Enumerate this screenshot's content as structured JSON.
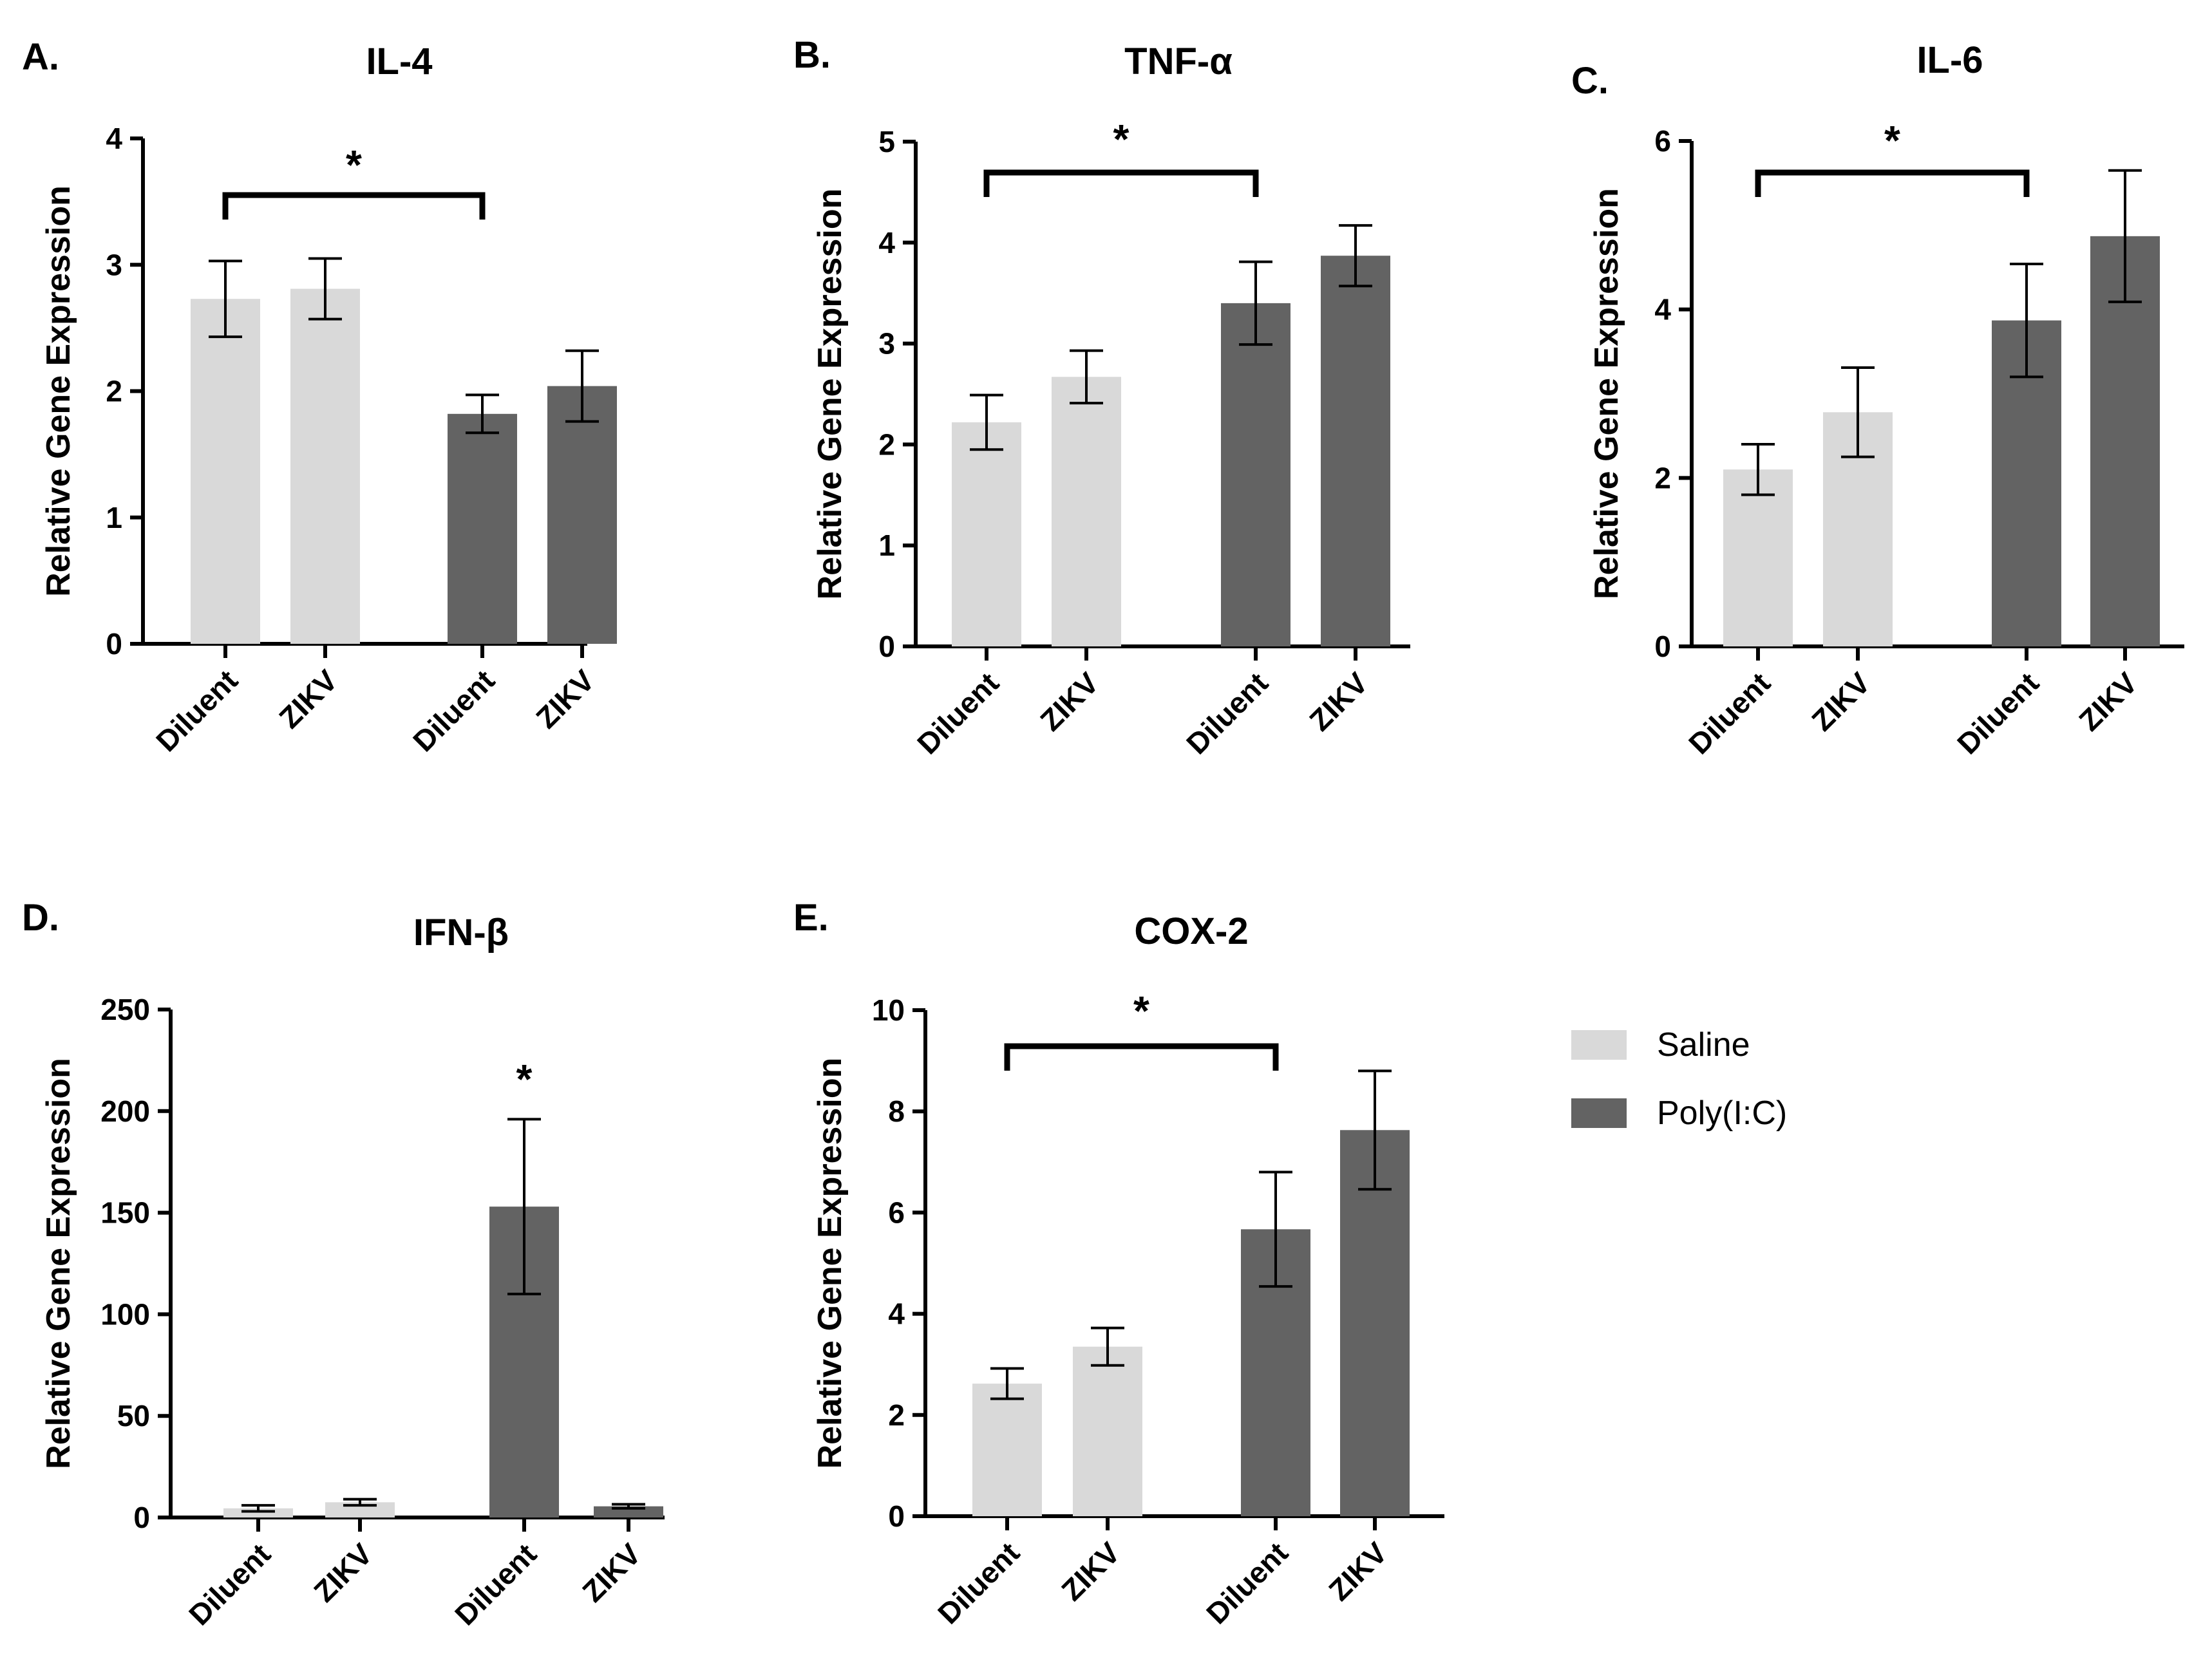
{
  "legend": {
    "entries": [
      {
        "label": "Saline",
        "color": "#d9d9d9"
      },
      {
        "label": "Poly(I:C)",
        "color": "#636363"
      }
    ]
  },
  "colors": {
    "saline": "#d9d9d9",
    "polyic": "#636363",
    "axis": "#000000"
  },
  "chart_data": [
    {
      "type": "bar",
      "panel": "A.",
      "title": "IL-4",
      "ylabel": "Relative Gene Expression",
      "ylim": [
        0,
        4
      ],
      "yticks": [
        "0",
        "1",
        "2",
        "3",
        "4"
      ],
      "categories": [
        "Diluent",
        "ZIKV",
        "Diluent",
        "ZIKV"
      ],
      "groups": [
        "Saline",
        "Saline",
        "Poly(I:C)",
        "Poly(I:C)"
      ],
      "values": [
        2.73,
        2.81,
        1.82,
        2.04
      ],
      "errors": [
        0.3,
        0.24,
        0.15,
        0.28
      ],
      "significance": {
        "label": "*",
        "type": "bracket",
        "from": 0,
        "to": 2
      }
    },
    {
      "type": "bar",
      "panel": "B.",
      "title": "TNF-α",
      "ylabel": "Relative Gene Expression",
      "ylim": [
        0,
        5
      ],
      "yticks": [
        "0",
        "1",
        "2",
        "3",
        "4",
        "5"
      ],
      "categories": [
        "Diluent",
        "ZIKV",
        "Diluent",
        "ZIKV"
      ],
      "groups": [
        "Saline",
        "Saline",
        "Poly(I:C)",
        "Poly(I:C)"
      ],
      "values": [
        2.22,
        2.67,
        3.4,
        3.87
      ],
      "errors": [
        0.27,
        0.26,
        0.41,
        0.3
      ],
      "significance": {
        "label": "*",
        "type": "bracket",
        "from": 0,
        "to": 2
      }
    },
    {
      "type": "bar",
      "panel": "C.",
      "title": "IL-6",
      "ylabel": "Relative Gene Expression",
      "ylim": [
        0,
        6
      ],
      "yticks": [
        "0",
        "2",
        "4",
        "6"
      ],
      "categories": [
        "Diluent",
        "ZIKV",
        "Diluent",
        "ZIKV"
      ],
      "groups": [
        "Saline",
        "Saline",
        "Poly(I:C)",
        "Poly(I:C)"
      ],
      "values": [
        2.1,
        2.78,
        3.87,
        4.87
      ],
      "errors": [
        0.3,
        0.53,
        0.67,
        0.78
      ],
      "significance": {
        "label": "*",
        "type": "bracket",
        "from": 0,
        "to": 2
      }
    },
    {
      "type": "bar",
      "panel": "D.",
      "title": "IFN-β",
      "ylabel": "Relative Gene Expression",
      "ylim": [
        0,
        250
      ],
      "yticks": [
        "0",
        "50",
        "100",
        "150",
        "200",
        "250"
      ],
      "categories": [
        "Diluent",
        "ZIKV",
        "Diluent",
        "ZIKV"
      ],
      "groups": [
        "Saline",
        "Saline",
        "Poly(I:C)",
        "Poly(I:C)"
      ],
      "values": [
        4.5,
        7.5,
        153,
        5.5
      ],
      "errors": [
        1.5,
        1.5,
        43,
        1.0
      ],
      "significance": {
        "label": "*",
        "type": "single",
        "bar": 2
      }
    },
    {
      "type": "bar",
      "panel": "E.",
      "title": "COX-2",
      "ylabel": "Relative Gene Expression",
      "ylim": [
        0,
        10
      ],
      "yticks": [
        "0",
        "2",
        "4",
        "6",
        "8",
        "10"
      ],
      "categories": [
        "Diluent",
        "ZIKV",
        "Diluent",
        "ZIKV"
      ],
      "groups": [
        "Saline",
        "Saline",
        "Poly(I:C)",
        "Poly(I:C)"
      ],
      "values": [
        2.62,
        3.35,
        5.67,
        7.63
      ],
      "errors": [
        0.3,
        0.37,
        1.13,
        1.17
      ],
      "significance": {
        "label": "*",
        "type": "bracket",
        "from": 0,
        "to": 2
      }
    }
  ]
}
